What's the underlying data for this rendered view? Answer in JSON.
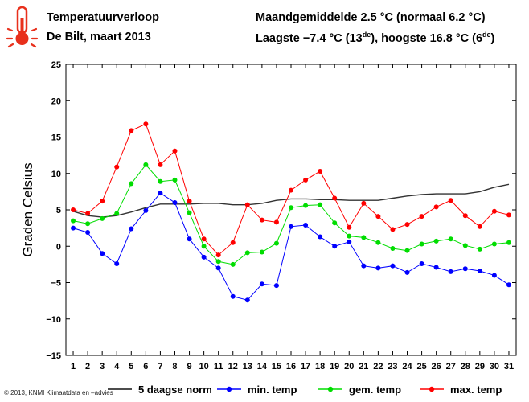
{
  "header": {
    "title": "Temperatuurverloop",
    "subtitle": "De Bilt, maart 2013",
    "stats_line1": "Maandgemiddelde 2.5 °C (normaal 6.2 °C)",
    "stats_low_prefix": "Laagste −7.4 °C (13",
    "stats_low_sup": "de",
    "stats_high_prefix": "), hoogste 16.8 °C (6",
    "stats_high_sup": "de",
    "stats_close": ")",
    "icon": "thermometer-icon"
  },
  "footer": "© 2013, KNMI Klimaatdata en –advies",
  "colors": {
    "norm": "#333333",
    "min": "#0000ff",
    "gem": "#00dd00",
    "max": "#ff0000",
    "icon": "#e8301c"
  },
  "chart_data": {
    "type": "line",
    "title": "",
    "xlabel": "",
    "ylabel": "Graden Celsius",
    "xlim": [
      0.5,
      31.5
    ],
    "ylim": [
      -15,
      25
    ],
    "yticks": [
      25,
      20,
      15,
      10,
      5,
      0,
      -5,
      -10,
      -15
    ],
    "yticklabels": [
      "25",
      "20",
      "15",
      "10",
      "5",
      "0",
      "−5",
      "−10",
      "−15"
    ],
    "x": [
      1,
      2,
      3,
      4,
      5,
      6,
      7,
      8,
      9,
      10,
      11,
      12,
      13,
      14,
      15,
      16,
      17,
      18,
      19,
      20,
      21,
      22,
      23,
      24,
      25,
      26,
      27,
      28,
      29,
      30,
      31
    ],
    "xticklabels": [
      "1",
      "2",
      "3",
      "4",
      "5",
      "6",
      "7",
      "8",
      "9",
      "10",
      "11",
      "12",
      "13",
      "14",
      "15",
      "16",
      "17",
      "18",
      "19",
      "20",
      "21",
      "22",
      "23",
      "24",
      "25",
      "26",
      "27",
      "28",
      "29",
      "30",
      "31"
    ],
    "grid": false,
    "legend_position": "bottom",
    "series": [
      {
        "name": "5 daagse norm",
        "key": "norm",
        "marker": false,
        "values": [
          4.8,
          4.2,
          4.0,
          4.2,
          4.7,
          5.3,
          5.8,
          5.8,
          5.8,
          5.9,
          5.9,
          5.7,
          5.7,
          5.9,
          6.3,
          6.5,
          6.5,
          6.4,
          6.4,
          6.3,
          6.3,
          6.3,
          6.6,
          6.9,
          7.1,
          7.2,
          7.2,
          7.2,
          7.5,
          8.1,
          8.5
        ]
      },
      {
        "name": "min. temp",
        "key": "min",
        "marker": true,
        "values": [
          2.5,
          1.9,
          -1.0,
          -2.4,
          2.4,
          4.9,
          7.3,
          6.0,
          1.0,
          -1.5,
          -3.0,
          -6.9,
          -7.4,
          -5.2,
          -5.4,
          2.7,
          2.9,
          1.3,
          0.0,
          0.6,
          -2.7,
          -3.0,
          -2.7,
          -3.6,
          -2.4,
          -2.9,
          -3.5,
          -3.1,
          -3.4,
          -4.0,
          -5.3
        ]
      },
      {
        "name": "gem. temp",
        "key": "gem",
        "marker": true,
        "values": [
          3.5,
          3.1,
          3.8,
          4.5,
          8.6,
          11.2,
          8.9,
          9.1,
          4.6,
          0.0,
          -2.1,
          -2.5,
          -0.9,
          -0.8,
          0.4,
          5.3,
          5.6,
          5.7,
          3.2,
          1.4,
          1.2,
          0.5,
          -0.3,
          -0.6,
          0.3,
          0.7,
          1.0,
          0.1,
          -0.4,
          0.3,
          0.5
        ]
      },
      {
        "name": "max. temp",
        "key": "max",
        "marker": true,
        "values": [
          5.0,
          4.5,
          6.2,
          10.9,
          15.9,
          16.8,
          11.2,
          13.1,
          6.2,
          1.0,
          -1.2,
          0.5,
          5.7,
          3.6,
          3.3,
          7.7,
          9.1,
          10.3,
          6.6,
          2.6,
          5.9,
          4.1,
          2.3,
          3.0,
          4.1,
          5.4,
          6.3,
          4.2,
          2.7,
          4.8,
          4.3
        ]
      }
    ]
  }
}
